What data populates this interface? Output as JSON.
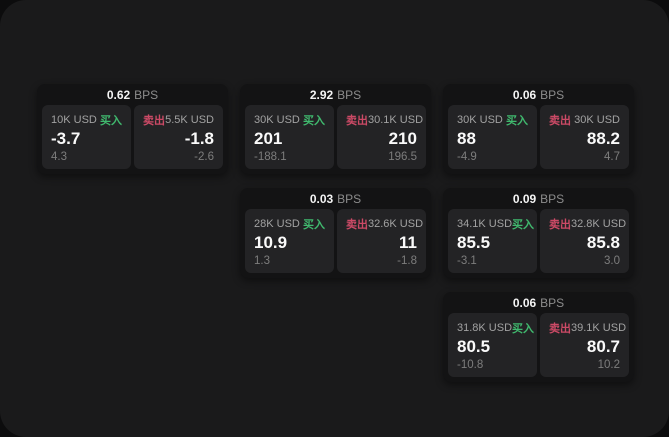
{
  "labels": {
    "buy": "买入",
    "sell": "卖出",
    "bps_unit": "BPS"
  },
  "colors": {
    "buy_green": "#40b96e",
    "sell_red": "#cc4a66",
    "page_bg": "#1a1a1b",
    "card_bg": "#131314",
    "panel_bg": "#232325"
  },
  "cards": [
    {
      "bps": "0.62",
      "col": 1,
      "row": 1,
      "buy": {
        "amount": "10K USD",
        "value": "-3.7",
        "sub": "4.3"
      },
      "sell": {
        "amount": "5.5K USD",
        "value": "-1.8",
        "sub": "-2.6"
      }
    },
    {
      "bps": "2.92",
      "col": 2,
      "row": 1,
      "buy": {
        "amount": "30K USD",
        "value": "201",
        "sub": "-188.1"
      },
      "sell": {
        "amount": "30.1K USD",
        "value": "210",
        "sub": "196.5"
      }
    },
    {
      "bps": "0.06",
      "col": 3,
      "row": 1,
      "buy": {
        "amount": "30K USD",
        "value": "88",
        "sub": "-4.9"
      },
      "sell": {
        "amount": "30K USD",
        "value": "88.2",
        "sub": "4.7"
      }
    },
    {
      "bps": "0.03",
      "col": 2,
      "row": 2,
      "buy": {
        "amount": "28K USD",
        "value": "10.9",
        "sub": "1.3"
      },
      "sell": {
        "amount": "32.6K USD",
        "value": "11",
        "sub": "-1.8"
      }
    },
    {
      "bps": "0.09",
      "col": 3,
      "row": 2,
      "buy": {
        "amount": "34.1K USD",
        "value": "85.5",
        "sub": "-3.1"
      },
      "sell": {
        "amount": "32.8K USD",
        "value": "85.8",
        "sub": "3.0"
      }
    },
    {
      "bps": "0.06",
      "col": 3,
      "row": 3,
      "buy": {
        "amount": "31.8K USD",
        "value": "80.5",
        "sub": "-10.8"
      },
      "sell": {
        "amount": "39.1K USD",
        "value": "80.7",
        "sub": "10.2"
      }
    }
  ]
}
